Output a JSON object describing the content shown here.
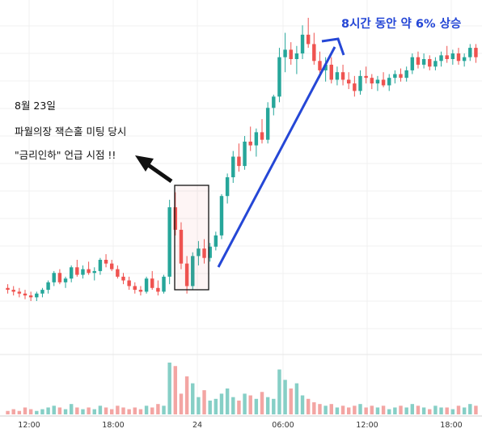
{
  "chart_data": {
    "type": "candlestick",
    "title": "",
    "xlabel": "",
    "ylabel": "",
    "x_tick_labels": [
      "12:00",
      "18:00",
      "24",
      "06:00",
      "12:00",
      "18:00"
    ],
    "y_axis_labels": "none",
    "grid": true,
    "colors": {
      "up": "#26a69a",
      "down": "#ef5350",
      "volume_up": "#86cfc6",
      "volume_down": "#f3a5a3",
      "arrow": "#2547d6"
    },
    "price_scale": "relative (100 = start of range)",
    "candles_ohlc": [
      [
        100.0,
        100.2,
        99.7,
        99.9
      ],
      [
        99.9,
        100.1,
        99.6,
        99.8
      ],
      [
        99.8,
        100.0,
        99.5,
        99.7
      ],
      [
        99.7,
        99.9,
        99.4,
        99.6
      ],
      [
        99.6,
        99.8,
        99.3,
        99.5
      ],
      [
        99.5,
        99.8,
        99.3,
        99.7
      ],
      [
        99.7,
        100.0,
        99.5,
        99.9
      ],
      [
        99.9,
        100.4,
        99.7,
        100.3
      ],
      [
        100.3,
        100.9,
        100.1,
        100.8
      ],
      [
        100.8,
        101.0,
        100.2,
        100.3
      ],
      [
        100.3,
        100.6,
        100.0,
        100.5
      ],
      [
        100.5,
        101.2,
        100.3,
        101.1
      ],
      [
        101.1,
        101.5,
        100.6,
        100.7
      ],
      [
        100.7,
        101.2,
        100.5,
        101.0
      ],
      [
        101.0,
        101.4,
        100.7,
        100.8
      ],
      [
        100.8,
        101.1,
        100.4,
        100.9
      ],
      [
        100.9,
        101.6,
        100.7,
        101.5
      ],
      [
        101.5,
        101.8,
        101.1,
        101.3
      ],
      [
        101.3,
        101.5,
        100.9,
        101.0
      ],
      [
        101.0,
        101.2,
        100.5,
        100.6
      ],
      [
        100.6,
        100.8,
        100.2,
        100.4
      ],
      [
        100.4,
        100.6,
        99.9,
        100.1
      ],
      [
        100.1,
        100.3,
        99.7,
        99.9
      ],
      [
        99.9,
        100.1,
        99.6,
        99.8
      ],
      [
        99.8,
        100.6,
        99.7,
        100.5
      ],
      [
        100.5,
        100.9,
        99.9,
        100.0
      ],
      [
        100.0,
        100.4,
        99.6,
        99.8
      ],
      [
        99.8,
        100.7,
        99.7,
        100.6
      ],
      [
        100.6,
        104.7,
        100.2,
        104.3
      ],
      [
        104.3,
        105.1,
        102.8,
        103.1
      ],
      [
        103.1,
        103.5,
        101.0,
        101.3
      ],
      [
        101.3,
        101.7,
        99.7,
        100.1
      ],
      [
        100.1,
        101.9,
        99.9,
        101.7
      ],
      [
        101.7,
        102.5,
        101.2,
        102.1
      ],
      [
        102.1,
        102.6,
        101.3,
        101.6
      ],
      [
        101.6,
        102.4,
        101.4,
        102.2
      ],
      [
        102.2,
        103.0,
        102.0,
        102.8
      ],
      [
        102.8,
        105.0,
        102.6,
        104.9
      ],
      [
        104.9,
        106.1,
        104.5,
        105.9
      ],
      [
        105.9,
        107.3,
        105.6,
        107.0
      ],
      [
        107.0,
        107.7,
        106.2,
        106.5
      ],
      [
        106.5,
        108.1,
        106.3,
        107.8
      ],
      [
        107.8,
        108.6,
        107.3,
        107.6
      ],
      [
        107.6,
        108.5,
        107.0,
        108.3
      ],
      [
        108.3,
        109.0,
        107.7,
        107.9
      ],
      [
        107.9,
        109.9,
        107.7,
        109.6
      ],
      [
        109.6,
        110.3,
        109.2,
        110.2
      ],
      [
        110.2,
        112.8,
        109.9,
        112.3
      ],
      [
        112.3,
        113.6,
        111.5,
        112.7
      ],
      [
        112.7,
        113.1,
        111.9,
        112.2
      ],
      [
        112.2,
        112.9,
        111.4,
        112.5
      ],
      [
        112.5,
        114.0,
        112.2,
        113.5
      ],
      [
        113.5,
        114.4,
        112.8,
        113.0
      ],
      [
        113.0,
        113.6,
        111.9,
        112.1
      ],
      [
        112.1,
        112.6,
        111.2,
        111.6
      ],
      [
        111.6,
        112.3,
        111.0,
        111.9
      ],
      [
        111.9,
        112.3,
        110.9,
        111.1
      ],
      [
        111.1,
        111.8,
        110.8,
        111.5
      ],
      [
        111.5,
        111.9,
        110.8,
        111.1
      ],
      [
        111.1,
        111.5,
        110.6,
        110.9
      ],
      [
        110.9,
        111.3,
        110.2,
        110.5
      ],
      [
        110.5,
        111.6,
        110.3,
        111.3
      ],
      [
        111.3,
        111.8,
        110.9,
        111.2
      ],
      [
        111.2,
        111.4,
        110.6,
        110.9
      ],
      [
        110.9,
        111.3,
        110.5,
        111.1
      ],
      [
        111.1,
        111.5,
        110.7,
        110.8
      ],
      [
        110.8,
        111.4,
        110.5,
        111.2
      ],
      [
        111.2,
        111.6,
        110.9,
        111.4
      ],
      [
        111.4,
        111.7,
        111.0,
        111.2
      ],
      [
        111.2,
        111.8,
        111.0,
        111.6
      ],
      [
        111.6,
        112.5,
        111.4,
        112.3
      ],
      [
        112.3,
        112.6,
        111.7,
        111.9
      ],
      [
        111.9,
        112.5,
        111.7,
        112.2
      ],
      [
        112.2,
        112.4,
        111.6,
        111.8
      ],
      [
        111.8,
        112.3,
        111.6,
        112.1
      ],
      [
        112.1,
        112.6,
        111.8,
        112.4
      ],
      [
        112.4,
        112.9,
        112.0,
        112.2
      ],
      [
        112.2,
        112.7,
        111.9,
        112.5
      ],
      [
        112.5,
        112.8,
        111.9,
        112.1
      ],
      [
        112.1,
        112.5,
        111.8,
        112.3
      ],
      [
        112.3,
        113.0,
        112.1,
        112.8
      ],
      [
        112.8,
        113.0,
        112.0,
        112.3
      ]
    ],
    "volume": [
      2,
      3,
      2,
      4,
      3,
      2,
      3,
      4,
      5,
      4,
      3,
      6,
      4,
      3,
      4,
      3,
      5,
      4,
      3,
      5,
      4,
      3,
      4,
      3,
      5,
      4,
      6,
      5,
      30,
      28,
      12,
      22,
      18,
      10,
      14,
      8,
      9,
      12,
      15,
      10,
      8,
      12,
      11,
      9,
      13,
      10,
      9,
      26,
      20,
      15,
      18,
      11,
      9,
      7,
      6,
      5,
      6,
      4,
      5,
      4,
      5,
      6,
      4,
      5,
      4,
      5,
      3,
      4,
      5,
      4,
      6,
      5,
      4,
      3,
      5,
      4,
      4,
      3,
      5,
      4,
      6,
      5
    ]
  },
  "annotations": {
    "left_note": [
      "8월 23일",
      "파월의장 잭슨홀 미팅 당시",
      "\"금리인하\" 언급 시점 !!"
    ],
    "headline": "8시간 동안 약 6% 상승"
  }
}
